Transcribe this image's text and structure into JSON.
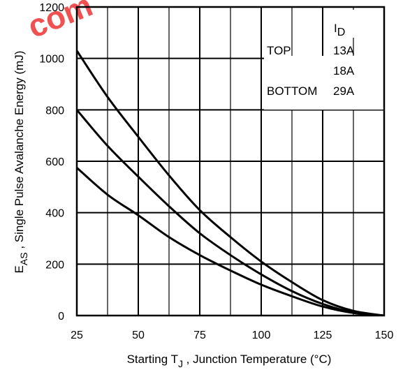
{
  "watermark": "com",
  "chart_data": {
    "type": "line",
    "xlabel": "Starting T",
    "xlabel_sub": "J",
    "xlabel_rest": " , Junction Temperature (°C)",
    "ylabel": "E",
    "ylabel_sub": "AS",
    "ylabel_rest": " , Single Pulse Avalanche Energy (mJ)",
    "xlim": [
      25,
      150
    ],
    "ylim": [
      0,
      1200
    ],
    "xticks": [
      25,
      50,
      75,
      100,
      125,
      150
    ],
    "yticks": [
      0,
      200,
      400,
      600,
      800,
      1000,
      1200
    ],
    "grid": true,
    "legend": {
      "title": "I",
      "title_sub": "D",
      "position": "top-right",
      "rows": [
        {
          "label": "TOP",
          "value": "13A"
        },
        {
          "label": "",
          "value": "18A"
        },
        {
          "label": "BOTTOM",
          "value": "29A"
        }
      ]
    },
    "series": [
      {
        "x": [
          25,
          37.5,
          50,
          62.5,
          75,
          87.5,
          100,
          112.5,
          125,
          137.5,
          150
        ],
        "y": [
          1030,
          850,
          695,
          545,
          410,
          305,
          210,
          130,
          60,
          18,
          0
        ]
      },
      {
        "x": [
          25,
          37.5,
          50,
          62.5,
          75,
          87.5,
          100,
          112.5,
          125,
          137.5,
          150
        ],
        "y": [
          800,
          660,
          540,
          425,
          320,
          235,
          160,
          95,
          45,
          12,
          0
        ]
      },
      {
        "x": [
          25,
          37.5,
          50,
          62.5,
          75,
          87.5,
          100,
          112.5,
          125,
          137.5,
          150
        ],
        "y": [
          575,
          470,
          390,
          305,
          235,
          175,
          120,
          75,
          35,
          10,
          0
        ]
      }
    ]
  }
}
